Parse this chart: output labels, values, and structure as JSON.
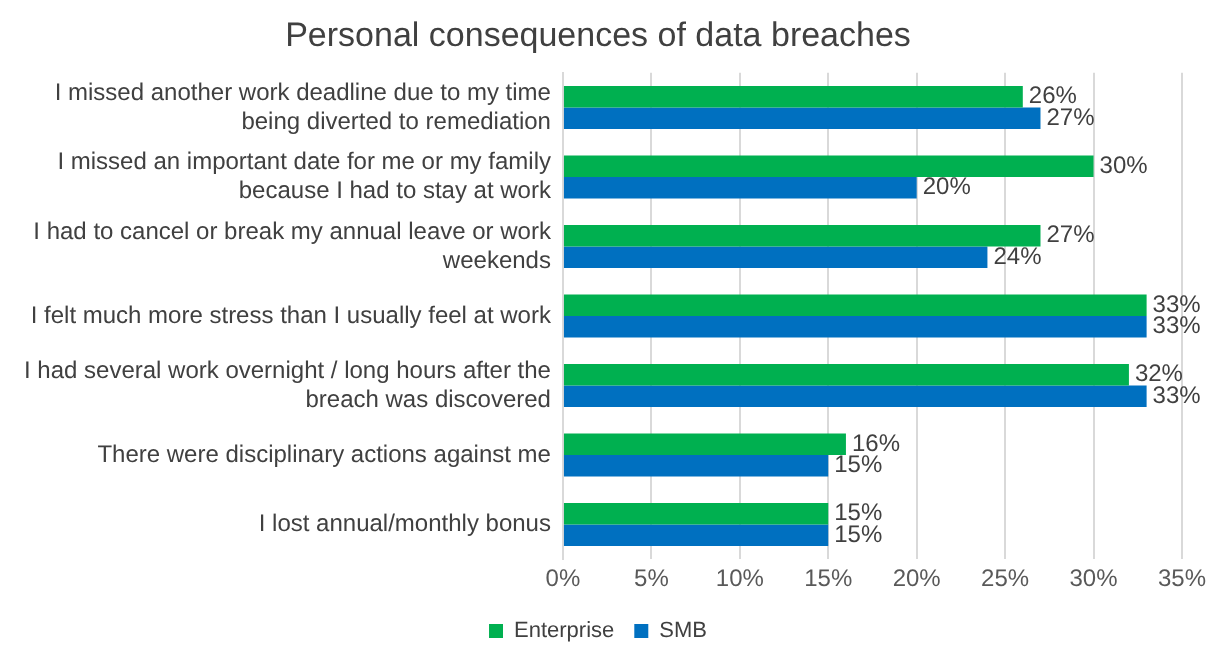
{
  "chart_data": {
    "type": "bar",
    "orientation": "horizontal",
    "title": "Personal consequences of data breaches",
    "categories": [
      "I missed another work deadline due to my time being diverted to remediation",
      "I missed an important date for me or my family because I had to stay at work",
      "I had to cancel or break my annual leave or work weekends",
      "I felt much more stress than I usually feel at work",
      "I had several work overnight / long hours after the breach was discovered",
      "There were disciplinary actions against me",
      "I lost annual/monthly bonus"
    ],
    "series": [
      {
        "name": "Enterprise",
        "color": "#00b050",
        "values": [
          26,
          30,
          27,
          33,
          32,
          16,
          15
        ],
        "value_labels": [
          "26%",
          "30%",
          "27%",
          "33%",
          "32%",
          "16%",
          "15%"
        ]
      },
      {
        "name": "SMB",
        "color": "#0070c0",
        "values": [
          27,
          20,
          24,
          33,
          33,
          15,
          15
        ],
        "value_labels": [
          "27%",
          "20%",
          "24%",
          "33%",
          "33%",
          "15%",
          "15%"
        ]
      }
    ],
    "xlim": [
      0,
      35
    ],
    "xticks": [
      {
        "value": 0,
        "label": "0%"
      },
      {
        "value": 5,
        "label": "5%"
      },
      {
        "value": 10,
        "label": "10%"
      },
      {
        "value": 15,
        "label": "15%"
      },
      {
        "value": 20,
        "label": "20%"
      },
      {
        "value": 25,
        "label": "25%"
      },
      {
        "value": 30,
        "label": "30%"
      },
      {
        "value": 35,
        "label": "35%"
      }
    ],
    "grid": "x",
    "legend": "bottom"
  }
}
